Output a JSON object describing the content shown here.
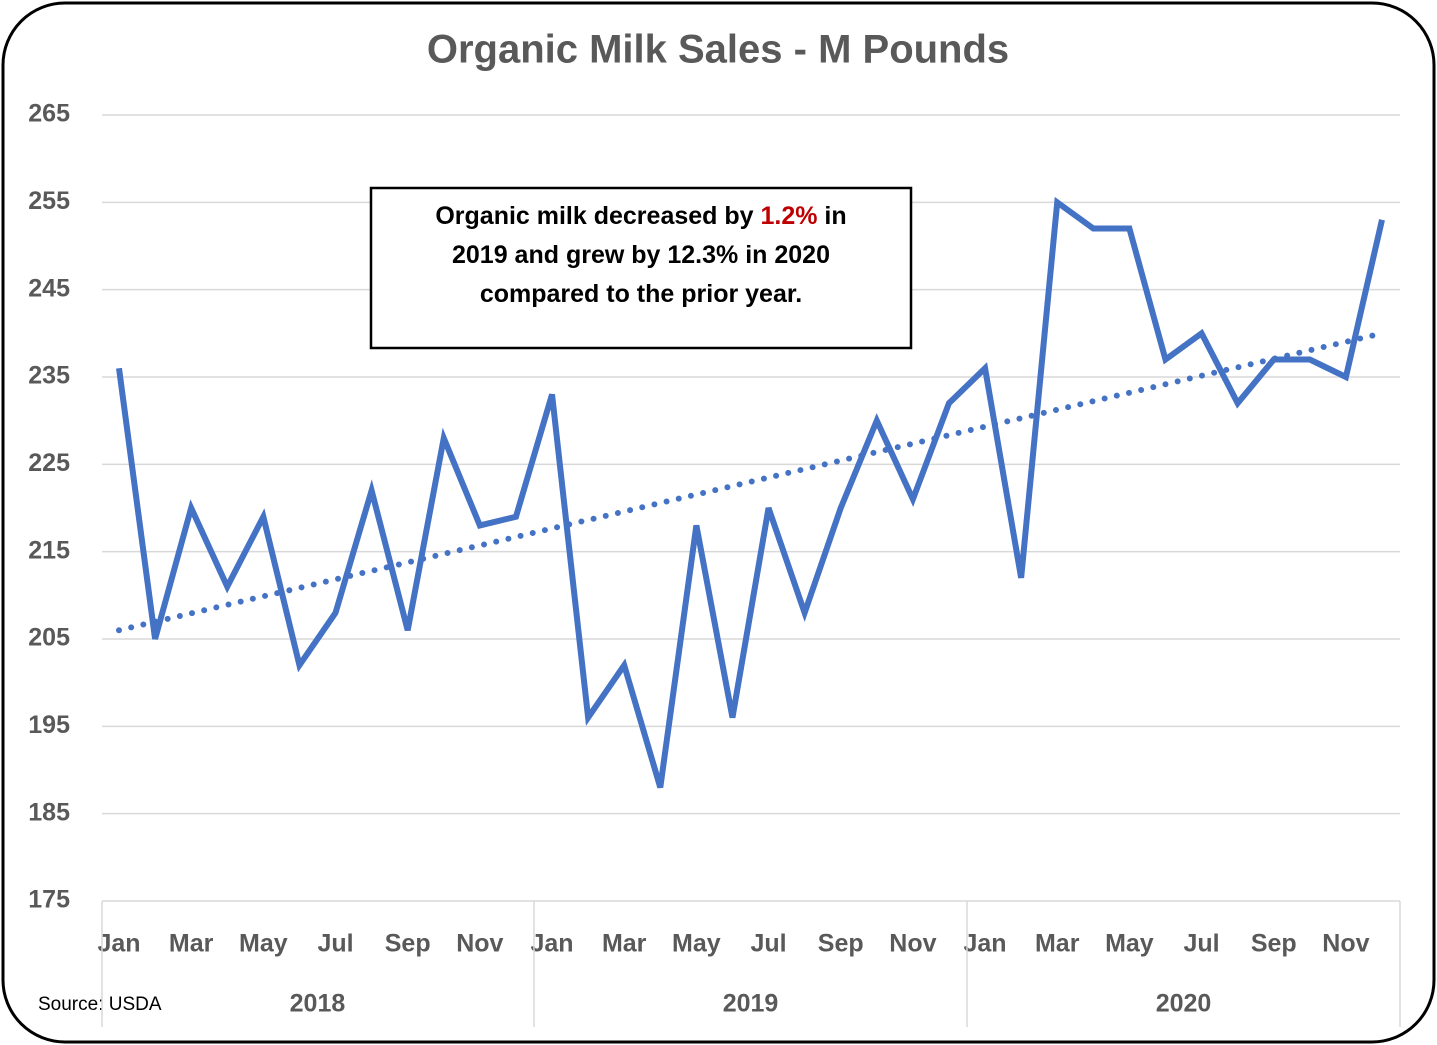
{
  "chart_data": {
    "type": "line",
    "title": "Organic Milk Sales - M Pounds",
    "categories": [
      "Jan",
      null,
      "Mar",
      null,
      "May",
      null,
      "Jul",
      null,
      "Sep",
      null,
      "Nov",
      null,
      "Jan",
      null,
      "Mar",
      null,
      "May",
      null,
      "Jul",
      null,
      "Sep",
      null,
      "Nov",
      null,
      "Jan",
      null,
      "Mar",
      null,
      "May",
      null,
      "Jul",
      null,
      "Sep",
      null,
      "Nov",
      null
    ],
    "year_groups": [
      "2018",
      "2019",
      "2020"
    ],
    "series": [
      {
        "color": "#4472c4",
        "values": [
          236,
          205,
          220,
          211,
          219,
          202,
          208,
          222,
          206,
          228,
          218,
          219,
          233,
          196,
          202,
          188,
          218,
          196,
          220,
          208,
          220,
          230,
          221,
          232,
          236,
          212,
          255,
          252,
          252,
          237,
          240,
          232,
          237,
          237,
          235,
          253
        ]
      }
    ],
    "trendline": {
      "color": "#4472c4",
      "values": [
        206,
        240
      ]
    },
    "ylim": [
      175,
      265
    ],
    "yticks": [
      175,
      185,
      195,
      205,
      215,
      225,
      235,
      245,
      255,
      265
    ],
    "grid": true,
    "annotation_lines": [
      [
        {
          "text": "Organic milk decreased by ",
          "color": "#000000"
        },
        {
          "text": "1.2%",
          "color": "#c00000"
        },
        {
          "text": " in",
          "color": "#000000"
        }
      ],
      [
        {
          "text": "2019 and grew by 12.3% in 2020",
          "color": "#000000"
        }
      ],
      [
        {
          "text": "compared to the prior year.",
          "color": "#000000"
        }
      ]
    ],
    "source": "Source: USDA"
  }
}
